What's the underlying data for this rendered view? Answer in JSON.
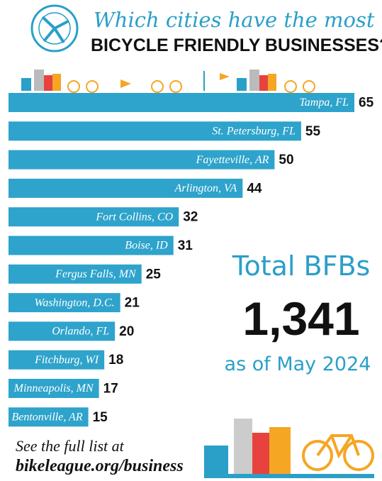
{
  "chart_data": {
    "type": "hbar",
    "title": "Which cities have the most",
    "subtitle": "BICYCLE FRIENDLY BUSINESSES?",
    "categories": [
      "Tampa, FL",
      "St. Petersburg, FL",
      "Fayetteville, AR",
      "Arlington, VA",
      "Fort Collins, CO",
      "Boise, ID",
      "Fergus Falls, MN",
      "Washington, D.C.",
      "Orlando, FL",
      "Fitchburg, WI",
      "Minneapolis, MN",
      "Bentonville, AR"
    ],
    "values": [
      65,
      55,
      50,
      44,
      32,
      31,
      25,
      21,
      20,
      18,
      17,
      15
    ],
    "color": "#2ea3cb",
    "annotations": {
      "total_label": "Total BFBs",
      "total_value": "1,341",
      "as_of": "as of May 2024",
      "footer_line1": "See the full list at",
      "footer_line2": "bikeleague.org/business"
    }
  }
}
